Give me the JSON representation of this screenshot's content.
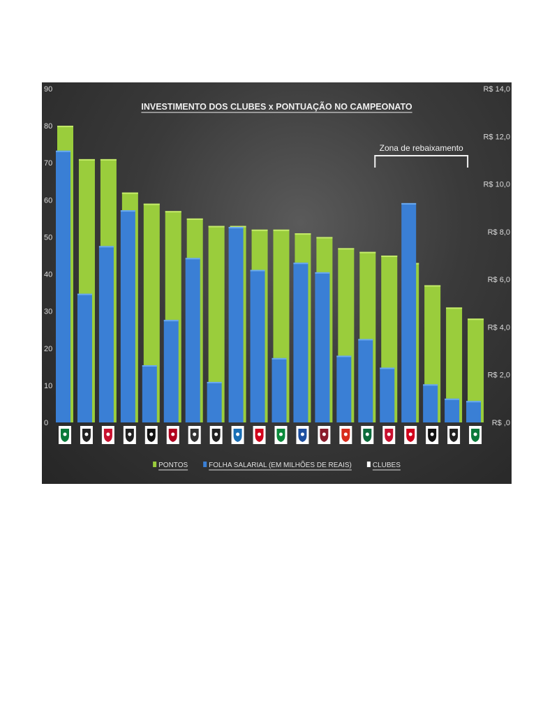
{
  "chart_data": {
    "type": "bar",
    "title": "INVESTIMENTO DOS CLUBES  x  PONTUAÇÃO NO CAMPEONATO",
    "annotation": "Zona de rebaixamento",
    "annotation_range_categories": [
      16,
      19
    ],
    "categories": [
      "palmeiras",
      "santos",
      "flamengo",
      "atletico-mg",
      "botafogo",
      "atletico-pr",
      "corinthians",
      "ponte-preta",
      "gremio",
      "sao-paulo",
      "chapecoense",
      "cruzeiro",
      "fluminense",
      "sport",
      "coritiba",
      "vitoria",
      "internacional",
      "figueirense",
      "santa-cruz",
      "america-mg"
    ],
    "category_colors": [
      "#0b7a3b",
      "#222222",
      "#c8102e",
      "#222222",
      "#111111",
      "#b0001e",
      "#333333",
      "#222222",
      "#1a6fb5",
      "#d0021b",
      "#0b8a3b",
      "#1d4fa0",
      "#8a1c2c",
      "#d92b1c",
      "#0b6b3b",
      "#c8102e",
      "#d0021b",
      "#111111",
      "#222222",
      "#0b7a3b"
    ],
    "series": [
      {
        "name": "PONTOS",
        "axis": "left",
        "color": "#9acd3c",
        "values": [
          80,
          71,
          71,
          62,
          59,
          57,
          55,
          53,
          53,
          52,
          52,
          51,
          50,
          47,
          46,
          45,
          43,
          37,
          31,
          28
        ]
      },
      {
        "name": "FOLHA SALARIAL (EM MILHÕES DE REAIS)",
        "axis": "right",
        "color": "#3a7fd5",
        "values": [
          11.4,
          5.4,
          7.4,
          8.9,
          2.4,
          4.3,
          6.9,
          1.7,
          8.2,
          6.4,
          2.7,
          6.7,
          6.3,
          2.8,
          3.5,
          2.3,
          9.2,
          1.6,
          1.0,
          0.9
        ]
      }
    ],
    "legend_extra": {
      "name": "CLUBES",
      "color": "#ffffff"
    },
    "left_axis": {
      "ylim": [
        0,
        90
      ],
      "ticks": [
        "0",
        "10",
        "20",
        "30",
        "40",
        "50",
        "60",
        "70",
        "80",
        "90"
      ]
    },
    "right_axis": {
      "ylim": [
        0,
        14
      ],
      "ticks": [
        "R$ ,0",
        "R$ 2,0",
        "R$ 4,0",
        "R$ 6,0",
        "R$ 8,0",
        "R$ 10,0",
        "R$ 12,0",
        "R$ 14,0"
      ]
    },
    "grid": false,
    "legend_position": "bottom"
  }
}
